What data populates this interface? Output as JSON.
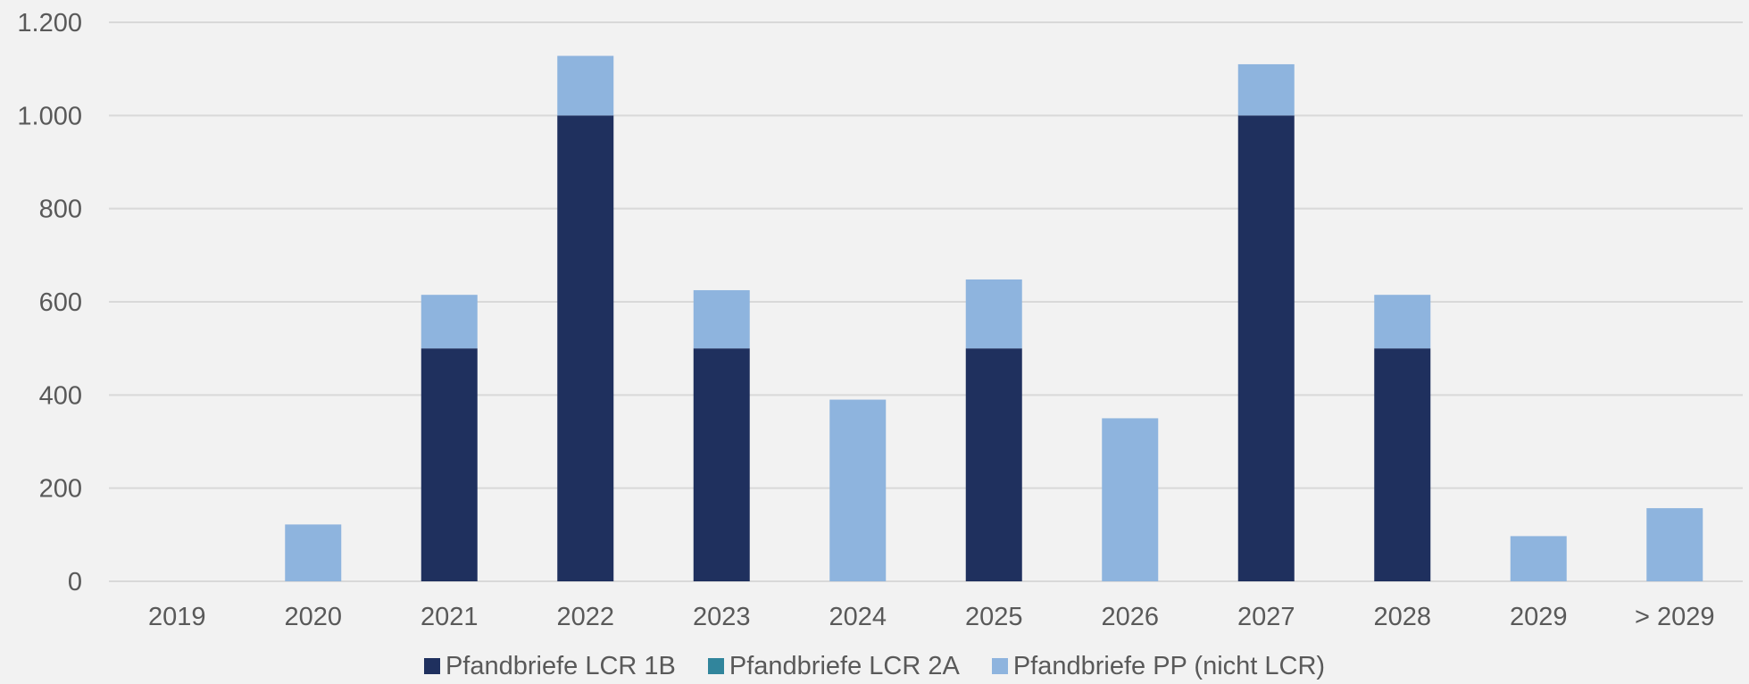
{
  "chart_data": {
    "type": "bar",
    "stacked": true,
    "title": "",
    "xlabel": "",
    "ylabel": "",
    "ylim": [
      0,
      1200
    ],
    "y_ticks": [
      0,
      200,
      400,
      600,
      800,
      1000,
      1200
    ],
    "y_tick_labels": [
      "0",
      "200",
      "400",
      "600",
      "800",
      "1.000",
      "1.200"
    ],
    "grid": true,
    "legend_position": "bottom",
    "categories": [
      "2019",
      "2020",
      "2021",
      "2022",
      "2023",
      "2024",
      "2025",
      "2026",
      "2027",
      "2028",
      "2029",
      "> 2029"
    ],
    "series": [
      {
        "name": "Pfandbriefe LCR 1B",
        "color": "#1f305e",
        "values": [
          0,
          0,
          500,
          1000,
          500,
          0,
          500,
          0,
          1000,
          500,
          0,
          0
        ]
      },
      {
        "name": "Pfandbriefe LCR 2A",
        "color": "#31859c",
        "values": [
          0,
          0,
          0,
          0,
          0,
          0,
          0,
          0,
          0,
          0,
          0,
          0
        ]
      },
      {
        "name": "Pfandbriefe PP (nicht LCR)",
        "color": "#8eb4de",
        "values": [
          0,
          122,
          115,
          128,
          125,
          390,
          148,
          350,
          110,
          115,
          97,
          157
        ]
      }
    ]
  }
}
